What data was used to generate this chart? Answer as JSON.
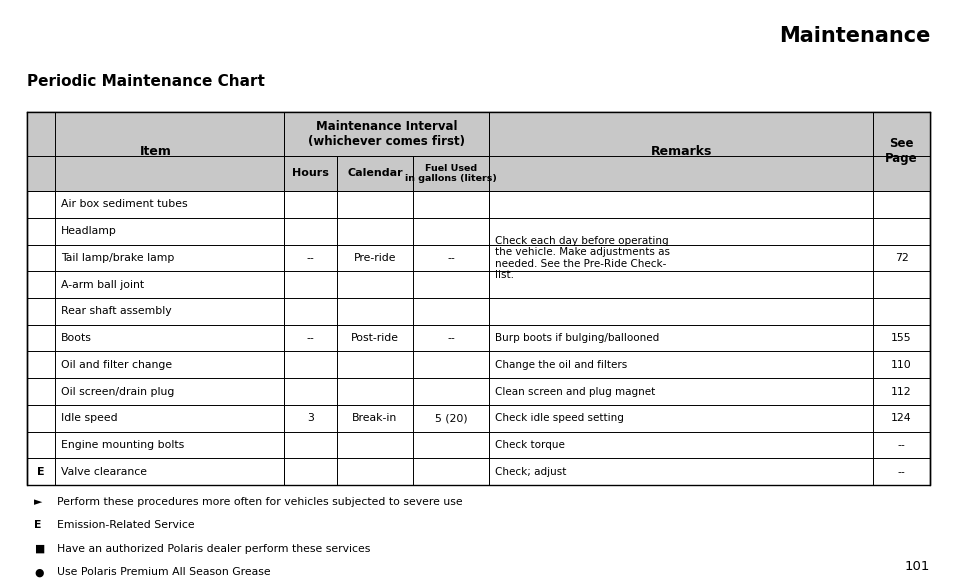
{
  "title": "Maintenance",
  "subtitle": "Periodic Maintenance Chart",
  "page_number": "101",
  "bg": "#ffffff",
  "header_bg": "#c8c8c8",
  "rows": [
    {
      "prefix": "",
      "item": "Air box sediment tubes",
      "hours": "--",
      "calendar": "Pre-ride",
      "fuel": "--",
      "remarks": "Check each day before operating\nthe vehicle. Make adjustments as\nneeded. See the Pre-Ride Check-\nlist.",
      "page": "72"
    },
    {
      "prefix": "",
      "item": "Headlamp",
      "hours": "--",
      "calendar": "",
      "fuel": "--",
      "remarks": "",
      "page": ""
    },
    {
      "prefix": "",
      "item": "Tail lamp/brake lamp",
      "hours": "--",
      "calendar": "",
      "fuel": "--",
      "remarks": "",
      "page": ""
    },
    {
      "prefix": "",
      "item": "A-arm ball joint",
      "hours": "--",
      "calendar": "",
      "fuel": "--",
      "remarks": "",
      "page": ""
    },
    {
      "prefix": "",
      "item": "Rear shaft assembly",
      "hours": "--",
      "calendar": "",
      "fuel": "--",
      "remarks": "",
      "page": ""
    },
    {
      "prefix": "",
      "item": "Boots",
      "hours": "--",
      "calendar": "Post-ride",
      "fuel": "--",
      "remarks": "Burp boots if bulging/ballooned",
      "page": "155"
    },
    {
      "prefix": "",
      "item": "Oil and filter change",
      "hours": "",
      "calendar": "",
      "fuel": "",
      "remarks": "Change the oil and filters",
      "page": "110"
    },
    {
      "prefix": "",
      "item": "Oil screen/drain plug",
      "hours": "3",
      "calendar": "Break-in",
      "fuel": "5 (20)",
      "remarks": "Clean screen and plug magnet",
      "page": "112"
    },
    {
      "prefix": "",
      "item": "Idle speed",
      "hours": "",
      "calendar": "",
      "fuel": "",
      "remarks": "Check idle speed setting",
      "page": "124"
    },
    {
      "prefix": "",
      "item": "Engine mounting bolts",
      "hours": "",
      "calendar": "",
      "fuel": "",
      "remarks": "Check torque",
      "page": "--"
    },
    {
      "prefix": "E",
      "item": "Valve clearance",
      "hours": "",
      "calendar": "",
      "fuel": "",
      "remarks": "Check; adjust",
      "page": "--"
    }
  ],
  "merged_groups": [
    {
      "start": 0,
      "end": 4,
      "hours": "--",
      "calendar": "Pre-ride",
      "fuel": "--"
    },
    {
      "start": 5,
      "end": 5,
      "hours": "--",
      "calendar": "Post-ride",
      "fuel": "--"
    },
    {
      "start": 6,
      "end": 10,
      "hours": "3",
      "calendar": "Break-in",
      "fuel": "5 (20)"
    }
  ],
  "remarks_merged": [
    {
      "start": 0,
      "end": 4,
      "text": "Check each day before operating\nthe vehicle. Make adjustments as\nneeded. See the Pre-Ride Check-\nlist.",
      "page": "72"
    },
    {
      "start": 5,
      "end": 5,
      "text": "Burp boots if bulging/ballooned",
      "page": "155"
    },
    {
      "start": 6,
      "end": 6,
      "text": "Change the oil and filters",
      "page": "110"
    },
    {
      "start": 7,
      "end": 7,
      "text": "Clean screen and plug magnet",
      "page": "112"
    },
    {
      "start": 8,
      "end": 8,
      "text": "Check idle speed setting",
      "page": "124"
    },
    {
      "start": 9,
      "end": 9,
      "text": "Check torque",
      "page": "--"
    },
    {
      "start": 10,
      "end": 10,
      "text": "Check; adjust",
      "page": "--"
    }
  ],
  "footnotes": [
    [
      "►",
      "Perform these procedures more often for vehicles subjected to severe use"
    ],
    [
      "E",
      "Emission-Related Service"
    ],
    [
      "■",
      "Have an authorized Polaris dealer perform these services"
    ],
    [
      "●",
      "Use Polaris Premium All Season Grease"
    ]
  ]
}
